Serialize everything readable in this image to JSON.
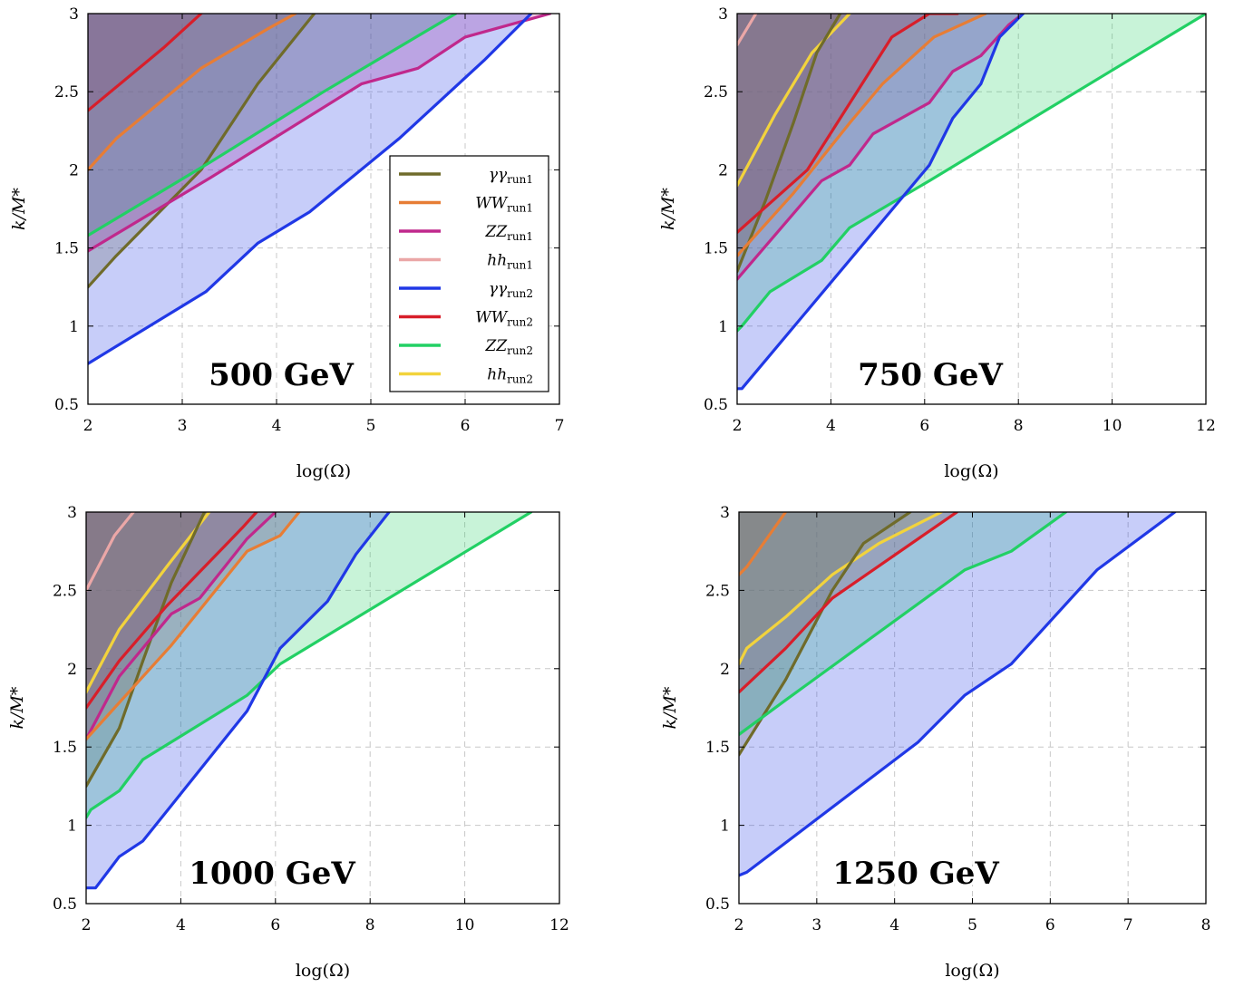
{
  "colors": {
    "gg_run1": "#6f6b2a",
    "ww_run1": "#e77d35",
    "zz_run1": "#c0288c",
    "hh_run1": "#eba7a7",
    "gg_run2": "#2038e6",
    "ww_run2": "#d81e2a",
    "zz_run2": "#22d064",
    "hh_run2": "#f2d33c",
    "grid": "#c8c8c8"
  },
  "legend": {
    "placement": "right",
    "entries": [
      {
        "key": "gg_run1",
        "base": "γγ",
        "sub": "run1"
      },
      {
        "key": "ww_run1",
        "base": "WW",
        "sub": "run1"
      },
      {
        "key": "zz_run1",
        "base": "ZZ",
        "sub": "run1"
      },
      {
        "key": "hh_run1",
        "base": "hh",
        "sub": "run1"
      },
      {
        "key": "gg_run2",
        "base": "γγ",
        "sub": "run2"
      },
      {
        "key": "ww_run2",
        "base": "WW",
        "sub": "run2"
      },
      {
        "key": "zz_run2",
        "base": "ZZ",
        "sub": "run2"
      },
      {
        "key": "hh_run2",
        "base": "hh",
        "sub": "run2"
      }
    ]
  },
  "chart_data": [
    {
      "type": "area",
      "title": "500 GeV",
      "xlabel": "log(Ω)",
      "ylabel": "k/M*",
      "xlim": [
        2,
        7
      ],
      "ylim": [
        0.5,
        3
      ],
      "xticks": [
        2,
        3,
        4,
        5,
        6,
        7
      ],
      "yticks": [
        0.5,
        1,
        1.5,
        2,
        2.5,
        3
      ],
      "grid": true,
      "legend": true,
      "series": [
        {
          "key": "ww_run2",
          "x": [
            2,
            2.8,
            3.2
          ],
          "y": [
            2.38,
            2.78,
            3.0
          ]
        },
        {
          "key": "ww_run1",
          "x": [
            2,
            2.3,
            3.2,
            3.9,
            4.2
          ],
          "y": [
            2.0,
            2.2,
            2.65,
            2.9,
            3.0
          ]
        },
        {
          "key": "gg_run1",
          "x": [
            2,
            2.3,
            3.2,
            3.8,
            4.4
          ],
          "y": [
            1.25,
            1.45,
            2.0,
            2.55,
            3.0
          ]
        },
        {
          "key": "zz_run2",
          "x": [
            2,
            3.3,
            4.5,
            5.9
          ],
          "y": [
            1.58,
            2.05,
            2.5,
            3.0
          ]
        },
        {
          "key": "zz_run1",
          "x": [
            2,
            3.3,
            4.9,
            5.5,
            6.0,
            6.9
          ],
          "y": [
            1.48,
            1.95,
            2.55,
            2.65,
            2.85,
            3.0
          ]
        },
        {
          "key": "gg_run2",
          "x": [
            2,
            3.25,
            3.8,
            4.35,
            5.3,
            6.2,
            6.7
          ],
          "y": [
            0.76,
            1.22,
            1.53,
            1.73,
            2.2,
            2.7,
            3.0
          ]
        }
      ]
    },
    {
      "type": "area",
      "title": "750 GeV",
      "xlabel": "log(Ω)",
      "ylabel": "k/M*",
      "xlim": [
        2,
        12
      ],
      "ylim": [
        0.5,
        3
      ],
      "xticks": [
        2,
        4,
        6,
        8,
        10,
        12
      ],
      "yticks": [
        0.5,
        1,
        1.5,
        2,
        2.5,
        3
      ],
      "grid": true,
      "legend": false,
      "series": [
        {
          "key": "hh_run1",
          "x": [
            2,
            2.4
          ],
          "y": [
            2.8,
            3.0
          ]
        },
        {
          "key": "hh_run2",
          "x": [
            2,
            2.8,
            3.6,
            4.4
          ],
          "y": [
            1.9,
            2.35,
            2.75,
            3.0
          ]
        },
        {
          "key": "gg_run1",
          "x": [
            2,
            2.6,
            3.2,
            3.7,
            4.2
          ],
          "y": [
            1.35,
            1.8,
            2.3,
            2.75,
            3.0
          ]
        },
        {
          "key": "ww_run1",
          "x": [
            2,
            3.2,
            4.4,
            5.1,
            6.2,
            7.3
          ],
          "y": [
            1.45,
            1.85,
            2.3,
            2.55,
            2.85,
            3.0
          ]
        },
        {
          "key": "ww_run2",
          "x": [
            2,
            3.5,
            5.3,
            6.1,
            6.7
          ],
          "y": [
            1.6,
            2.0,
            2.85,
            3.0,
            3.0
          ]
        },
        {
          "key": "zz_run1",
          "x": [
            2,
            3.8,
            4.4,
            4.9,
            6.1,
            6.6,
            7.2,
            7.8,
            8.1
          ],
          "y": [
            1.3,
            1.93,
            2.03,
            2.23,
            2.43,
            2.63,
            2.73,
            2.93,
            3.0
          ]
        },
        {
          "key": "zz_run2",
          "x": [
            2,
            2.1,
            2.7,
            3.8,
            4.4,
            6.1,
            12
          ],
          "y": [
            0.97,
            1.0,
            1.22,
            1.42,
            1.63,
            1.93,
            3.0
          ]
        },
        {
          "key": "gg_run2",
          "x": [
            2,
            2.1,
            6.1,
            6.6,
            7.2,
            7.6,
            8.1
          ],
          "y": [
            0.6,
            0.6,
            2.03,
            2.33,
            2.55,
            2.85,
            3.0
          ]
        }
      ]
    },
    {
      "type": "area",
      "title": "1000 GeV",
      "xlabel": "log(Ω)",
      "ylabel": "k/M*",
      "xlim": [
        2,
        12
      ],
      "ylim": [
        0.5,
        3
      ],
      "xticks": [
        2,
        4,
        6,
        8,
        10,
        12
      ],
      "yticks": [
        0.5,
        1,
        1.5,
        2,
        2.5,
        3
      ],
      "grid": true,
      "legend": false,
      "series": [
        {
          "key": "hh_run1",
          "x": [
            2,
            2.6,
            3.0
          ],
          "y": [
            2.5,
            2.85,
            3.0
          ]
        },
        {
          "key": "hh_run2",
          "x": [
            2,
            2.7,
            3.7,
            4.6
          ],
          "y": [
            1.85,
            2.25,
            2.65,
            3.0
          ]
        },
        {
          "key": "gg_run1",
          "x": [
            2,
            2.7,
            3.2,
            3.8,
            4.5
          ],
          "y": [
            1.25,
            1.62,
            2.05,
            2.55,
            3.0
          ]
        },
        {
          "key": "ww_run2",
          "x": [
            2,
            2.7,
            3.7,
            5.3,
            5.6
          ],
          "y": [
            1.75,
            2.05,
            2.4,
            2.9,
            3.0
          ]
        },
        {
          "key": "zz_run1",
          "x": [
            2,
            2.7,
            3.8,
            4.4,
            5.4,
            6.0
          ],
          "y": [
            1.55,
            1.95,
            2.35,
            2.45,
            2.83,
            3.0
          ]
        },
        {
          "key": "ww_run1",
          "x": [
            2,
            3.8,
            5.4,
            6.1,
            6.5
          ],
          "y": [
            1.55,
            2.15,
            2.75,
            2.85,
            3.0
          ]
        },
        {
          "key": "zz_run2",
          "x": [
            2,
            2.1,
            2.7,
            3.2,
            5.4,
            6.1,
            11.4
          ],
          "y": [
            1.05,
            1.1,
            1.22,
            1.42,
            1.83,
            2.03,
            3.0
          ]
        },
        {
          "key": "gg_run2",
          "x": [
            2,
            2.2,
            2.7,
            3.2,
            5.4,
            6.1,
            7.1,
            7.7,
            8.4
          ],
          "y": [
            0.6,
            0.6,
            0.8,
            0.9,
            1.73,
            2.13,
            2.43,
            2.73,
            3.0
          ]
        }
      ]
    },
    {
      "type": "area",
      "title": "1250 GeV",
      "xlabel": "log(Ω)",
      "ylabel": "k/M*",
      "xlim": [
        2,
        8
      ],
      "ylim": [
        0.5,
        3
      ],
      "xticks": [
        2,
        3,
        4,
        5,
        6,
        7,
        8
      ],
      "yticks": [
        0.5,
        1,
        1.5,
        2,
        2.5,
        3
      ],
      "grid": true,
      "legend": false,
      "series": [
        {
          "key": "ww_run1",
          "x": [
            2,
            2.1,
            2.6
          ],
          "y": [
            2.6,
            2.65,
            3.0
          ]
        },
        {
          "key": "hh_run2",
          "x": [
            2,
            2.1,
            2.6,
            3.2,
            3.8,
            4.6
          ],
          "y": [
            2.03,
            2.13,
            2.33,
            2.6,
            2.8,
            3.0
          ]
        },
        {
          "key": "gg_run1",
          "x": [
            2,
            2.6,
            3.2,
            3.6,
            4.2
          ],
          "y": [
            1.45,
            1.93,
            2.5,
            2.8,
            3.0
          ]
        },
        {
          "key": "ww_run2",
          "x": [
            2,
            2.6,
            3.2,
            4.8
          ],
          "y": [
            1.85,
            2.13,
            2.45,
            3.0
          ]
        },
        {
          "key": "zz_run2",
          "x": [
            2,
            2.6,
            4.9,
            5.5,
            6.2
          ],
          "y": [
            1.58,
            1.8,
            2.63,
            2.75,
            3.0
          ]
        },
        {
          "key": "gg_run2",
          "x": [
            2,
            2.1,
            4.3,
            4.9,
            5.5,
            6.6,
            7.6
          ],
          "y": [
            0.68,
            0.7,
            1.53,
            1.83,
            2.03,
            2.63,
            3.0
          ]
        }
      ]
    }
  ]
}
